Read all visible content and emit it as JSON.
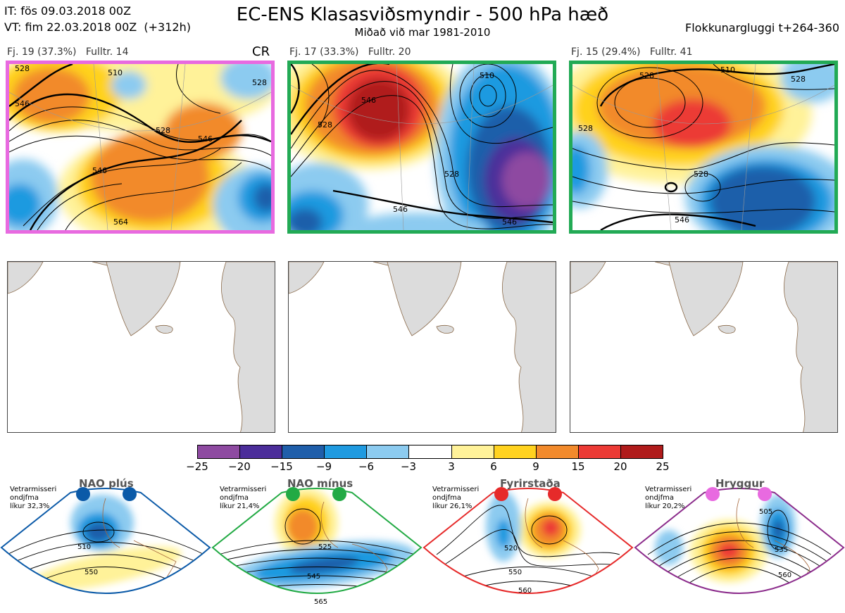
{
  "header": {
    "init_line": "IT: fös 09.03.2018 00Z",
    "valid_line": "VT: fim 22.03.2018 00Z  (+312h)",
    "title": "EC-ENS Klasasviðsmyndir - 500 hPa hæð",
    "subtitle": "Miðað við mar 1981-2010",
    "window": "Flokkunargluggi t+264-360"
  },
  "clusters": [
    {
      "label": "Fj. 19 (37.3%)",
      "representative": "Fulltr. 14",
      "regime_code": "CR",
      "border_color": "#e86ae0",
      "contour_labels": [
        "528",
        "510",
        "546",
        "528",
        "546",
        "546",
        "528",
        "564"
      ]
    },
    {
      "label": "Fj. 17 (33.3%)",
      "representative": "Fulltr. 20",
      "regime_code": "",
      "border_color": "#22aa55",
      "contour_labels": [
        "510",
        "546",
        "528",
        "528",
        "546",
        "546"
      ]
    },
    {
      "label": "Fj. 15 (29.4%)",
      "representative": "Fulltr. 41",
      "regime_code": "",
      "border_color": "#22aa55",
      "contour_labels": [
        "528",
        "510",
        "528",
        "528",
        "546",
        "528"
      ]
    }
  ],
  "colorbar": {
    "ticks": [
      "−25",
      "−20",
      "−15",
      "−9",
      "−6",
      "−3",
      "3",
      "6",
      "9",
      "15",
      "20",
      "25"
    ],
    "colors": [
      "#8e4aa1",
      "#4b2d9a",
      "#1f5eaa",
      "#1f9ae0",
      "#8ccbf0",
      "#ffffff",
      "#fff299",
      "#ffd21f",
      "#f28a2c",
      "#ec3a35",
      "#b01b1b"
    ]
  },
  "regimes": [
    {
      "name": "NAO plús",
      "note": "Vetrarmisseri\nondjfma\nlíkur 32,3%",
      "color": "#0b5aa8",
      "contour_labels": [
        "510",
        "550"
      ]
    },
    {
      "name": "NAO mínus",
      "note": "Vetrarmisseri\nondjfma\nlíkur 21,4%",
      "color": "#22aa44",
      "contour_labels": [
        "525",
        "545",
        "565"
      ]
    },
    {
      "name": "Fyrirstaða",
      "note": "Vetrarmisseri\nondjfma\nlíkur 26,1%",
      "color": "#e62a2a",
      "contour_labels": [
        "520",
        "550",
        "560"
      ]
    },
    {
      "name": "Hryggur",
      "note": "Vetrarmisseri\nondjfma\nlíkur 20,2%",
      "color": "#8b2b8b",
      "dot_color": "#e86ae0",
      "contour_labels": [
        "505",
        "535",
        "560"
      ]
    }
  ]
}
